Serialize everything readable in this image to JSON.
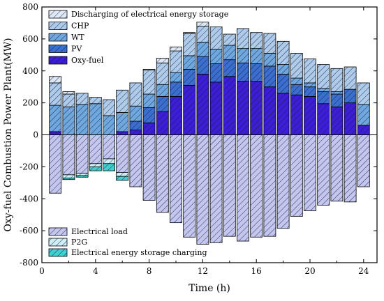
{
  "chart_data": {
    "type": "bar",
    "stacked": true,
    "xlabel": "Time (h)",
    "ylabel": "Oxy-fuel Combustion Power Plant(MW)",
    "xlim": [
      0,
      25
    ],
    "ylim": [
      -800,
      800
    ],
    "xticks": [
      0,
      4,
      8,
      12,
      16,
      20,
      24
    ],
    "yticks": [
      -800,
      -600,
      -400,
      -200,
      0,
      200,
      400,
      600,
      800
    ],
    "grid": false,
    "x": [
      1,
      2,
      3,
      4,
      5,
      6,
      7,
      8,
      9,
      10,
      11,
      12,
      13,
      14,
      15,
      16,
      17,
      18,
      19,
      20,
      21,
      22,
      23,
      24
    ],
    "legend_top": {
      "placement": "top-left",
      "entries": [
        {
          "name": "Discharging of electrical energy storage",
          "color": "#dfe8f5"
        },
        {
          "name": "CHP",
          "color": "#aecbea"
        },
        {
          "name": "WT",
          "color": "#6ea8de"
        },
        {
          "name": "PV",
          "color": "#3a6fd0"
        },
        {
          "name": "Oxy-fuel",
          "color": "#3b1ed6"
        }
      ]
    },
    "legend_bottom": {
      "placement": "bottom-left",
      "entries": [
        {
          "name": "Electrical load",
          "color": "#c3c7ef"
        },
        {
          "name": "P2G",
          "color": "#cfeff7"
        },
        {
          "name": "Electrical energy storage charging",
          "color": "#3fd0cf"
        }
      ]
    },
    "positive_series": [
      {
        "name": "Oxy-fuel",
        "color": "#3b1ed6",
        "values": [
          20,
          0,
          0,
          0,
          0,
          20,
          30,
          75,
          145,
          240,
          310,
          380,
          330,
          365,
          335,
          335,
          300,
          260,
          250,
          240,
          195,
          175,
          200,
          60
        ]
      },
      {
        "name": "PV",
        "color": "#3a6fd0",
        "values": [
          0,
          0,
          0,
          0,
          0,
          0,
          55,
          95,
          95,
          90,
          100,
          110,
          115,
          105,
          115,
          110,
          130,
          120,
          65,
          60,
          75,
          80,
          85,
          0
        ]
      },
      {
        "name": "WT",
        "color": "#6ea8de",
        "values": [
          165,
          175,
          190,
          195,
          120,
          120,
          95,
          85,
          75,
          60,
          85,
          90,
          90,
          90,
          90,
          95,
          80,
          60,
          40,
          25,
          20,
          15,
          0,
          130
        ]
      },
      {
        "name": "CHP",
        "color": "#aecbea",
        "values": [
          140,
          80,
          70,
          40,
          100,
          140,
          145,
          150,
          135,
          135,
          140,
          100,
          140,
          70,
          125,
          100,
          125,
          145,
          155,
          150,
          150,
          145,
          140,
          135
        ]
      },
      {
        "name": "Discharging of electrical energy storage",
        "color": "#dfe8f5",
        "values": [
          40,
          15,
          0,
          0,
          0,
          0,
          0,
          5,
          30,
          25,
          5,
          25,
          0,
          0,
          0,
          0,
          0,
          0,
          0,
          0,
          0,
          0,
          0,
          0
        ]
      }
    ],
    "negative_series": [
      {
        "name": "Electrical load",
        "color": "#c3c7ef",
        "values": [
          -365,
          -250,
          -240,
          -180,
          -150,
          -235,
          -325,
          -410,
          -485,
          -550,
          -640,
          -685,
          -675,
          -635,
          -665,
          -640,
          -635,
          -585,
          -510,
          -475,
          -440,
          -415,
          -420,
          -325
        ]
      },
      {
        "name": "P2G",
        "color": "#cfeff7",
        "values": [
          0,
          -20,
          -15,
          -20,
          -30,
          -25,
          0,
          0,
          0,
          0,
          0,
          0,
          0,
          0,
          0,
          0,
          0,
          0,
          0,
          0,
          0,
          0,
          0,
          0
        ]
      },
      {
        "name": "Electrical energy storage charging",
        "color": "#3fd0cf",
        "values": [
          0,
          -10,
          -10,
          -25,
          -45,
          -25,
          0,
          0,
          0,
          0,
          0,
          0,
          0,
          0,
          0,
          0,
          0,
          0,
          0,
          0,
          0,
          0,
          0,
          0
        ]
      }
    ]
  }
}
